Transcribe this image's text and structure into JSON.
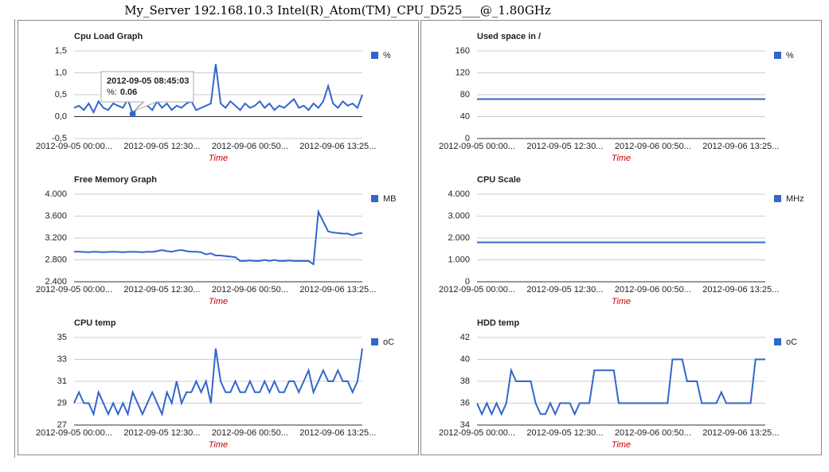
{
  "title": "My_Server 192.168.10.3 Intel(R)_Atom(TM)_CPU_D525___@_1.80GHz",
  "chart_data": [
    {
      "type": "line",
      "title": "Cpu Load Graph",
      "x_label": "Time",
      "categories": [
        "2012-09-05 00:00...",
        null,
        null,
        null,
        null,
        null,
        null,
        null,
        null,
        null,
        null,
        null,
        null,
        null,
        null,
        null,
        null,
        null,
        "2012-09-05 12:30...",
        null,
        null,
        null,
        null,
        null,
        null,
        null,
        null,
        null,
        null,
        null,
        null,
        null,
        null,
        null,
        null,
        null,
        "2012-09-06 00:50...",
        null,
        null,
        null,
        null,
        null,
        null,
        null,
        null,
        null,
        null,
        null,
        null,
        null,
        null,
        null,
        null,
        null,
        "2012-09-06 13:25...",
        null,
        null,
        null,
        null,
        null
      ],
      "series": [
        {
          "name": "%",
          "color": "#3366cc",
          "values": [
            0.2,
            0.25,
            0.15,
            0.3,
            0.1,
            0.35,
            0.2,
            0.15,
            0.3,
            0.25,
            0.2,
            0.4,
            0.06,
            0.2,
            0.3,
            0.25,
            0.15,
            0.35,
            0.2,
            0.3,
            0.15,
            0.25,
            0.2,
            0.3,
            0.35,
            0.15,
            0.2,
            0.25,
            0.3,
            1.2,
            0.3,
            0.2,
            0.35,
            0.25,
            0.15,
            0.3,
            0.2,
            0.25,
            0.35,
            0.2,
            0.3,
            0.15,
            0.25,
            0.2,
            0.3,
            0.4,
            0.2,
            0.25,
            0.15,
            0.3,
            0.2,
            0.35,
            0.7,
            0.3,
            0.2,
            0.35,
            0.25,
            0.3,
            0.2,
            0.5
          ]
        }
      ],
      "ylim": [
        -0.5,
        1.5
      ],
      "yticks": [
        {
          "value": -0.5,
          "label": "-0,5"
        },
        {
          "value": 0,
          "label": "0,0"
        },
        {
          "value": 0.5,
          "label": "0,5"
        },
        {
          "value": 1,
          "label": "1,0"
        },
        {
          "value": 1.5,
          "label": "1,5"
        }
      ],
      "grid": true,
      "tooltip": {
        "title": "2012-09-05 08:45:03",
        "name": "%:",
        "value": 0.06
      }
    },
    {
      "type": "line",
      "title": "Used space in /",
      "x_label": "Time",
      "categories": [
        "2012-09-05 00:00...",
        null,
        null,
        null,
        null,
        null,
        null,
        null,
        null,
        null,
        null,
        null,
        null,
        null,
        null,
        null,
        null,
        null,
        "2012-09-05 12:30...",
        null,
        null,
        null,
        null,
        null,
        null,
        null,
        null,
        null,
        null,
        null,
        null,
        null,
        null,
        null,
        null,
        null,
        "2012-09-06 00:50...",
        null,
        null,
        null,
        null,
        null,
        null,
        null,
        null,
        null,
        null,
        null,
        null,
        null,
        null,
        null,
        null,
        null,
        "2012-09-06 13:25...",
        null,
        null,
        null,
        null,
        null
      ],
      "series": [
        {
          "name": "%",
          "color": "#3366cc",
          "values": [
            72,
            72,
            72,
            72,
            72,
            72,
            72,
            72,
            72,
            72,
            72,
            72,
            72,
            72,
            72,
            72,
            72,
            72,
            72,
            72,
            72,
            72,
            72,
            72,
            72,
            72,
            72,
            72,
            72,
            72,
            72,
            72,
            72,
            72,
            72,
            72,
            72,
            72,
            72,
            72,
            72,
            72,
            72,
            72,
            72,
            72,
            72,
            72,
            72,
            72,
            72,
            72,
            72,
            72,
            72,
            72,
            72,
            72,
            72,
            72
          ]
        }
      ],
      "ylim": [
        0,
        160
      ],
      "yticks": [
        0,
        40,
        80,
        120,
        160
      ],
      "grid": true
    },
    {
      "type": "line",
      "title": "Free Memory Graph",
      "x_label": "Time",
      "categories": [
        "2012-09-05 00:00...",
        null,
        null,
        null,
        null,
        null,
        null,
        null,
        null,
        null,
        null,
        null,
        null,
        null,
        null,
        null,
        null,
        null,
        "2012-09-05 12:30...",
        null,
        null,
        null,
        null,
        null,
        null,
        null,
        null,
        null,
        null,
        null,
        null,
        null,
        null,
        null,
        null,
        null,
        "2012-09-06 00:50...",
        null,
        null,
        null,
        null,
        null,
        null,
        null,
        null,
        null,
        null,
        null,
        null,
        null,
        null,
        null,
        null,
        null,
        "2012-09-06 13:25...",
        null,
        null,
        null,
        null,
        null
      ],
      "series": [
        {
          "name": "MB",
          "color": "#3366cc",
          "values": [
            2950,
            2950,
            2945,
            2940,
            2950,
            2945,
            2940,
            2945,
            2950,
            2945,
            2940,
            2945,
            2950,
            2945,
            2940,
            2950,
            2945,
            2960,
            2980,
            2960,
            2950,
            2970,
            2980,
            2960,
            2950,
            2950,
            2940,
            2900,
            2920,
            2880,
            2880,
            2870,
            2860,
            2850,
            2780,
            2780,
            2790,
            2780,
            2780,
            2800,
            2780,
            2800,
            2780,
            2780,
            2790,
            2780,
            2780,
            2780,
            2780,
            2720,
            3680,
            3500,
            3320,
            3300,
            3290,
            3280,
            3280,
            3250,
            3280,
            3290
          ]
        }
      ],
      "ylim": [
        2400,
        4000
      ],
      "yticks": [
        {
          "value": 2400,
          "label": "2.400"
        },
        {
          "value": 2800,
          "label": "2.800"
        },
        {
          "value": 3200,
          "label": "3.200"
        },
        {
          "value": 3600,
          "label": "3.600"
        },
        {
          "value": 4000,
          "label": "4.000"
        }
      ],
      "grid": true
    },
    {
      "type": "line",
      "title": "CPU Scale",
      "x_label": "Time",
      "categories": [
        "2012-09-05 00:00...",
        null,
        null,
        null,
        null,
        null,
        null,
        null,
        null,
        null,
        null,
        null,
        null,
        null,
        null,
        null,
        null,
        null,
        "2012-09-05 12:30...",
        null,
        null,
        null,
        null,
        null,
        null,
        null,
        null,
        null,
        null,
        null,
        null,
        null,
        null,
        null,
        null,
        null,
        "2012-09-06 00:50...",
        null,
        null,
        null,
        null,
        null,
        null,
        null,
        null,
        null,
        null,
        null,
        null,
        null,
        null,
        null,
        null,
        null,
        "2012-09-06 13:25...",
        null,
        null,
        null,
        null,
        null
      ],
      "series": [
        {
          "name": "MHz",
          "color": "#3366cc",
          "values": [
            1800,
            1800,
            1800,
            1800,
            1800,
            1800,
            1800,
            1800,
            1800,
            1800,
            1800,
            1800,
            1800,
            1800,
            1800,
            1800,
            1800,
            1800,
            1800,
            1800,
            1800,
            1800,
            1800,
            1800,
            1800,
            1800,
            1800,
            1800,
            1800,
            1800,
            1800,
            1800,
            1800,
            1800,
            1800,
            1800,
            1800,
            1800,
            1800,
            1800,
            1800,
            1800,
            1800,
            1800,
            1800,
            1800,
            1800,
            1800,
            1800,
            1800,
            1800,
            1800,
            1800,
            1800,
            1800,
            1800,
            1800,
            1800,
            1800,
            1800
          ]
        }
      ],
      "ylim": [
        0,
        4000
      ],
      "yticks": [
        0,
        {
          "value": 1000,
          "label": "1.000"
        },
        {
          "value": 2000,
          "label": "2.000"
        },
        {
          "value": 3000,
          "label": "3.000"
        },
        {
          "value": 4000,
          "label": "4.000"
        }
      ],
      "grid": true
    },
    {
      "type": "line",
      "title": "CPU temp",
      "x_label": "Time",
      "categories": [
        "2012-09-05 00:00...",
        null,
        null,
        null,
        null,
        null,
        null,
        null,
        null,
        null,
        null,
        null,
        null,
        null,
        null,
        null,
        null,
        null,
        "2012-09-05 12:30...",
        null,
        null,
        null,
        null,
        null,
        null,
        null,
        null,
        null,
        null,
        null,
        null,
        null,
        null,
        null,
        null,
        null,
        "2012-09-06 00:50...",
        null,
        null,
        null,
        null,
        null,
        null,
        null,
        null,
        null,
        null,
        null,
        null,
        null,
        null,
        null,
        null,
        null,
        "2012-09-06 13:25...",
        null,
        null,
        null,
        null,
        null
      ],
      "series": [
        {
          "name": "oC",
          "color": "#3366cc",
          "values": [
            29,
            30,
            29,
            29,
            28,
            30,
            29,
            28,
            29,
            28,
            29,
            28,
            30,
            29,
            28,
            29,
            30,
            29,
            28,
            30,
            29,
            31,
            29,
            30,
            30,
            31,
            30,
            31,
            29,
            34,
            31,
            30,
            30,
            31,
            30,
            30,
            31,
            30,
            30,
            31,
            30,
            31,
            30,
            30,
            31,
            31,
            30,
            31,
            32,
            30,
            31,
            32,
            31,
            31,
            32,
            31,
            31,
            30,
            31,
            34
          ]
        }
      ],
      "ylim": [
        27,
        35
      ],
      "yticks": [
        27,
        29,
        31,
        33,
        35
      ],
      "grid": true
    },
    {
      "type": "line",
      "title": "HDD temp",
      "x_label": "Time",
      "categories": [
        "2012-09-05 00:00...",
        null,
        null,
        null,
        null,
        null,
        null,
        null,
        null,
        null,
        null,
        null,
        null,
        null,
        null,
        null,
        null,
        null,
        "2012-09-05 12:30...",
        null,
        null,
        null,
        null,
        null,
        null,
        null,
        null,
        null,
        null,
        null,
        null,
        null,
        null,
        null,
        null,
        null,
        "2012-09-06 00:50...",
        null,
        null,
        null,
        null,
        null,
        null,
        null,
        null,
        null,
        null,
        null,
        null,
        null,
        null,
        null,
        null,
        null,
        "2012-09-06 13:25...",
        null,
        null,
        null,
        null,
        null
      ],
      "series": [
        {
          "name": "oC",
          "color": "#3366cc",
          "values": [
            36,
            35,
            36,
            35,
            36,
            35,
            36,
            39,
            38,
            38,
            38,
            38,
            36,
            35,
            35,
            36,
            35,
            36,
            36,
            36,
            35,
            36,
            36,
            36,
            39,
            39,
            39,
            39,
            39,
            36,
            36,
            36,
            36,
            36,
            36,
            36,
            36,
            36,
            36,
            36,
            40,
            40,
            40,
            38,
            38,
            38,
            36,
            36,
            36,
            36,
            37,
            36,
            36,
            36,
            36,
            36,
            36,
            40,
            40,
            40
          ]
        }
      ],
      "ylim": [
        34,
        42
      ],
      "yticks": [
        34,
        36,
        38,
        40,
        42
      ],
      "grid": true
    }
  ]
}
